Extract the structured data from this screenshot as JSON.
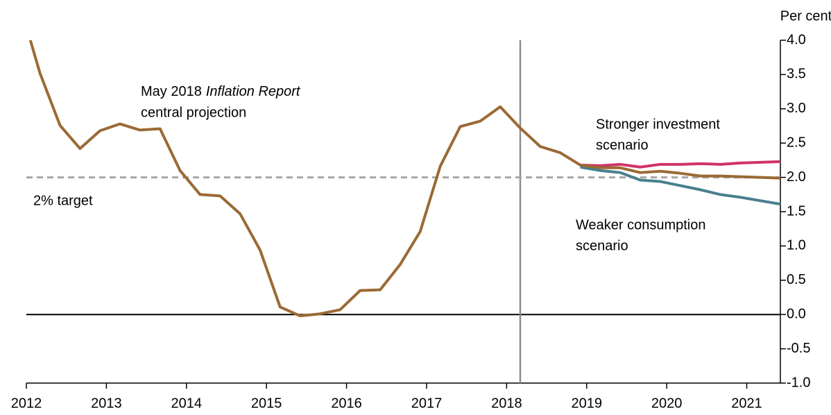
{
  "chart_data": {
    "type": "line",
    "y_axis_label": "Per cent",
    "x": [
      2012.05,
      2012.17,
      2012.42,
      2012.67,
      2012.92,
      2013.17,
      2013.42,
      2013.67,
      2013.92,
      2014.17,
      2014.42,
      2014.67,
      2014.92,
      2015.17,
      2015.42,
      2015.67,
      2015.92,
      2016.17,
      2016.42,
      2016.67,
      2016.92,
      2017.17,
      2017.42,
      2017.67,
      2017.92,
      2018.17,
      2018.42,
      2018.67,
      2018.92,
      2019.17,
      2019.42,
      2019.67,
      2019.92,
      2020.17,
      2020.42,
      2020.67,
      2020.92,
      2021.17,
      2021.42
    ],
    "series": [
      {
        "name": [
          "Stronger investment",
          "scenario"
        ],
        "color": "#d0336a",
        "values": [
          null,
          null,
          null,
          null,
          null,
          null,
          null,
          null,
          null,
          null,
          null,
          null,
          null,
          null,
          null,
          null,
          null,
          null,
          null,
          null,
          null,
          null,
          null,
          null,
          null,
          null,
          null,
          null,
          2.18,
          2.17,
          2.19,
          2.15,
          2.19,
          2.19,
          2.2,
          2.19,
          2.21,
          2.22,
          2.23
        ]
      },
      {
        "name": [
          "Weaker consumption",
          "scenario"
        ],
        "color": "#4a7f8e",
        "values": [
          null,
          null,
          null,
          null,
          null,
          null,
          null,
          null,
          null,
          null,
          null,
          null,
          null,
          null,
          null,
          null,
          null,
          null,
          null,
          null,
          null,
          null,
          null,
          null,
          null,
          null,
          null,
          null,
          2.15,
          2.1,
          2.07,
          1.96,
          1.94,
          1.88,
          1.82,
          1.75,
          1.71,
          1.66,
          1.61
        ]
      },
      {
        "name": [
          "May 2018",
          "Inflation Report",
          "central projection"
        ],
        "color": "#9b6a35",
        "values": [
          4.0,
          3.52,
          2.76,
          2.42,
          2.68,
          2.78,
          2.69,
          2.71,
          2.1,
          1.75,
          1.73,
          1.47,
          0.94,
          0.11,
          -0.02,
          0.01,
          0.07,
          0.35,
          0.36,
          0.73,
          1.21,
          2.16,
          2.74,
          2.82,
          3.03,
          2.72,
          2.45,
          2.36,
          2.18,
          2.14,
          2.14,
          2.07,
          2.09,
          2.06,
          2.02,
          2.02,
          2.01,
          2.0,
          1.99
        ]
      }
    ],
    "target": {
      "value": 2,
      "label": "2% target",
      "color": "#a6a6a6"
    },
    "zero_line": 0,
    "forecast_start": 2018.17,
    "xlim": [
      2012,
      2021.42
    ],
    "xticks": [
      2012,
      2013,
      2014,
      2015,
      2016,
      2017,
      2018,
      2019,
      2020,
      2021
    ],
    "ylim": [
      -1,
      4
    ],
    "yticks": [
      {
        "value": -1,
        "label": "-1.0"
      },
      -0.5,
      {
        "value": 0,
        "label": "0.0"
      },
      0.5,
      {
        "value": 1,
        "label": "1.0"
      },
      1.5,
      {
        "value": 2,
        "label": "2.0"
      },
      2.5,
      {
        "value": 3,
        "label": "3.0"
      },
      3.5,
      {
        "value": 4,
        "label": "4.0"
      }
    ],
    "y_axis_side": "right"
  }
}
